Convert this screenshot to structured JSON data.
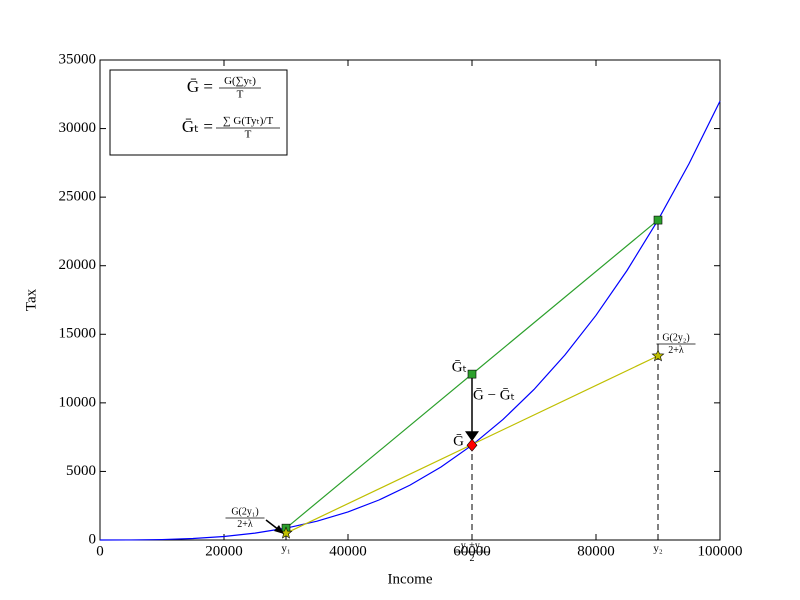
{
  "chart_data": {
    "type": "line",
    "xlabel": "Income",
    "ylabel": "Tax",
    "xlim": [
      0,
      100000
    ],
    "ylim": [
      0,
      35000
    ],
    "xticks": [
      0,
      20000,
      40000,
      60000,
      80000,
      100000
    ],
    "yticks": [
      0,
      5000,
      10000,
      15000,
      20000,
      25000,
      30000,
      35000
    ],
    "x_extra_ticks": [
      {
        "value": 30000,
        "label": "y₁"
      },
      {
        "value": 60000,
        "label": {
          "num": "y₁+y₂",
          "den": "2"
        }
      },
      {
        "value": 90000,
        "label": "y₂"
      }
    ],
    "grid": false,
    "series": [
      {
        "color": "#0000ff",
        "marker": "none",
        "x": [
          0,
          5000,
          10000,
          15000,
          20000,
          25000,
          30000,
          35000,
          40000,
          45000,
          50000,
          55000,
          60000,
          65000,
          70000,
          75000,
          80000,
          85000,
          90000,
          95000,
          100000
        ],
        "values": [
          0,
          4,
          32,
          108,
          256,
          500,
          864,
          1372,
          2048,
          2916,
          4000,
          5324,
          6912,
          8788,
          10976,
          13500,
          16384,
          19652,
          23328,
          27436,
          32000
        ]
      },
      {
        "color": "#2ca02c",
        "marker": "square",
        "x": [
          30000,
          60000,
          90000
        ],
        "values": [
          864,
          12096,
          23328
        ]
      },
      {
        "color": "#bfbf00",
        "marker": "star",
        "x": [
          30000,
          90000
        ],
        "values": [
          497,
          13426
        ]
      },
      {
        "color": "#ff0000",
        "marker": "diamond",
        "x": [
          60000
        ],
        "values": [
          6912
        ]
      }
    ],
    "annotations": [
      {
        "text": "Ḡₜ"
      },
      {
        "text": "Ḡ"
      },
      {
        "text": "Ḡ − Ḡₜ"
      },
      {
        "num": "G(2y₁)",
        "den": "2+λ"
      },
      {
        "num": "G(2y₂)",
        "den": "2+λ"
      }
    ],
    "legend_formulas": [
      {
        "lhs": "Ḡ =",
        "num": "G(∑yₜ)",
        "den": "T"
      },
      {
        "lhs": "Ḡₜ =",
        "num": "∑ G(Tyₜ)/T",
        "den": "T"
      }
    ]
  }
}
